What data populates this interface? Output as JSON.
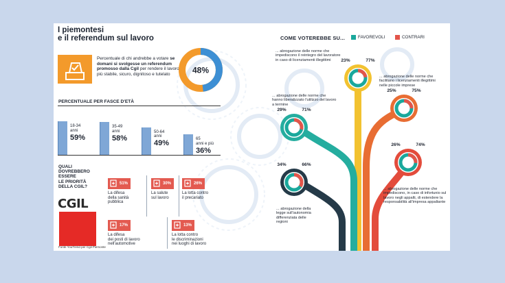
{
  "title": {
    "line1": "I piemontesi",
    "line2": "e il referendum sul lavoro"
  },
  "vote_header": "COME VOTEREBBE SU...",
  "legend": [
    {
      "label": "FAVOREVOLI",
      "color": "#1aa89c"
    },
    {
      "label": "CONTRARI",
      "color": "#e3554a"
    }
  ],
  "intro": {
    "pre": "Percentuale di chi andrebbe a votare ",
    "bold": "se domani si svolgesse un referendum promosso dalla Cgil",
    "post": " per rendere il lavoro più stabile, sicuro, dignitoso e tutelato",
    "percent_label": "48%"
  },
  "age": {
    "title": "PERCENTUALE PER FASCE D'ETÀ",
    "groups": [
      {
        "range": "18-34",
        "unit": "anni",
        "pct": "59%"
      },
      {
        "range": "35-49",
        "unit": "anni",
        "pct": "58%"
      },
      {
        "range": "50-64",
        "unit": "anni",
        "pct": "49%"
      },
      {
        "range": "65",
        "unit": "anni e più",
        "pct": "36%"
      }
    ]
  },
  "priorities": {
    "q1": "QUALI",
    "q2": "DOVREBBERO",
    "q3": "ESSERE",
    "q4": "LE PRIORITÀ",
    "q5": "DELLA CGIL?",
    "items": [
      {
        "pct": "51%",
        "l1": "La difesa",
        "l2": "della sanità",
        "l3": "pubblica"
      },
      {
        "pct": "30%",
        "l1": "La salute",
        "l2": "sul lavoro",
        "l3": ""
      },
      {
        "pct": "26%",
        "l1": "La lotta contro",
        "l2": "il precariato",
        "l3": ""
      },
      {
        "pct": "17%",
        "l1": "La difesa",
        "l2": "dei posti di lavoro",
        "l3": "nell'automotive"
      },
      {
        "pct": "13%",
        "l1": "La lotta contro",
        "l2": "le discriminazioni",
        "l3": "nei luoghi di lavoro"
      }
    ]
  },
  "logo": "CGIL",
  "source": "Fonte YouTrend per Cgil Piemonte",
  "chart_data": [
    {
      "type": "pie",
      "title": "",
      "values": [
        48,
        52
      ],
      "label": "48%"
    },
    {
      "type": "bar",
      "title": "PERCENTUALE PER FASCE D'ETÀ",
      "categories": [
        "18-34 anni",
        "35-49 anni",
        "50-64 anni",
        "65 anni e più"
      ],
      "values": [
        59,
        58,
        49,
        36
      ],
      "ylim": [
        0,
        100
      ]
    },
    {
      "type": "bar",
      "title": "QUALI DOVREBBERO ESSERE LE PRIORITÀ DELLA CGIL?",
      "categories": [
        "La difesa della sanità pubblica",
        "La salute sul lavoro",
        "La lotta contro il precariato",
        "La difesa dei posti di lavoro nell'automotive",
        "La lotta contro le discriminazioni nei luoghi di lavoro"
      ],
      "values": [
        51,
        30,
        26,
        17,
        13
      ]
    },
    {
      "type": "pie",
      "title": "COME VOTEREBBE SU...",
      "series": [
        {
          "name": "FAVOREVOLI",
          "color": "#1aa89c"
        },
        {
          "name": "CONTRARI",
          "color": "#e3554a"
        }
      ],
      "questions": [
        {
          "text": "... abrogazione delle norme che impediscono il reintegro del lavoratore in caso di licenziamenti illegittimi",
          "favorevoli": 77,
          "contrari": 23,
          "fav_label": "77%",
          "con_label": "23%",
          "color": "#f2c230"
        },
        {
          "text": "... abrogazione delle norme che facilitano i licenziamenti illegittimi nelle piccole imprese",
          "favorevoli": 75,
          "contrari": 25,
          "fav_label": "75%",
          "con_label": "25%",
          "color": "#e86d33"
        },
        {
          "text": "... abrogazione delle norme che hanno liberalizzato l'utilizzo del lavoro a termine",
          "favorevoli": 71,
          "contrari": 29,
          "fav_label": "71%",
          "con_label": "29%",
          "color": "#25ad9f"
        },
        {
          "text": "... abrogazione delle norme che impediscono, in caso di infortunio sul lavoro negli appalti, di estendere la responsabilità all'impresa appaltante",
          "favorevoli": 74,
          "contrari": 26,
          "fav_label": "74%",
          "con_label": "26%",
          "color": "#e34c3c"
        },
        {
          "text": "... abrogazione della legge sull'autonomia differenziata delle regioni",
          "favorevoli": 66,
          "contrari": 34,
          "fav_label": "66%",
          "con_label": "34%",
          "color": "#253a48"
        }
      ]
    }
  ]
}
